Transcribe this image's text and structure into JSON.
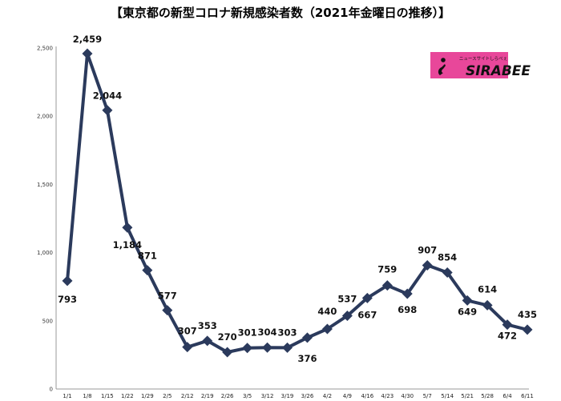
{
  "chart_data": {
    "type": "line",
    "title": "【東京都の新型コロナ新規感染者数（2021年金曜日の推移）】",
    "xlabel": "",
    "ylabel": "",
    "ylim": [
      0,
      2500
    ],
    "yticks": [
      0,
      500,
      1000,
      1500,
      2000,
      2500
    ],
    "ytick_labels": [
      "0",
      "500",
      "1,000",
      "1,500",
      "2,000",
      "2,500"
    ],
    "grid": false,
    "categories": [
      "1/1",
      "1/8",
      "1/15",
      "1/22",
      "1/29",
      "2/5",
      "2/12",
      "2/19",
      "2/26",
      "3/5",
      "3/12",
      "3/19",
      "3/26",
      "4/2",
      "4/9",
      "4/16",
      "4/23",
      "4/30",
      "5/7",
      "5/14",
      "5/21",
      "5/28",
      "6/4",
      "6/11"
    ],
    "values": [
      793,
      2459,
      2044,
      1184,
      871,
      577,
      307,
      353,
      270,
      301,
      304,
      303,
      376,
      440,
      537,
      667,
      759,
      698,
      907,
      854,
      649,
      614,
      472,
      435
    ],
    "data_labels": [
      "793",
      "2,459",
      "2,044",
      "1,184",
      "871",
      "577",
      "307",
      "353",
      "270",
      "301",
      "304",
      "303",
      "376",
      "440",
      "537",
      "667",
      "759",
      "698",
      "907",
      "854",
      "649",
      "614",
      "472",
      "435"
    ],
    "line_color": "#2b3a5c"
  },
  "logo": {
    "small_text": "ニュースサイトしらべぇ",
    "big_text": "SIRABEE",
    "bg_color": "#e8479a"
  }
}
